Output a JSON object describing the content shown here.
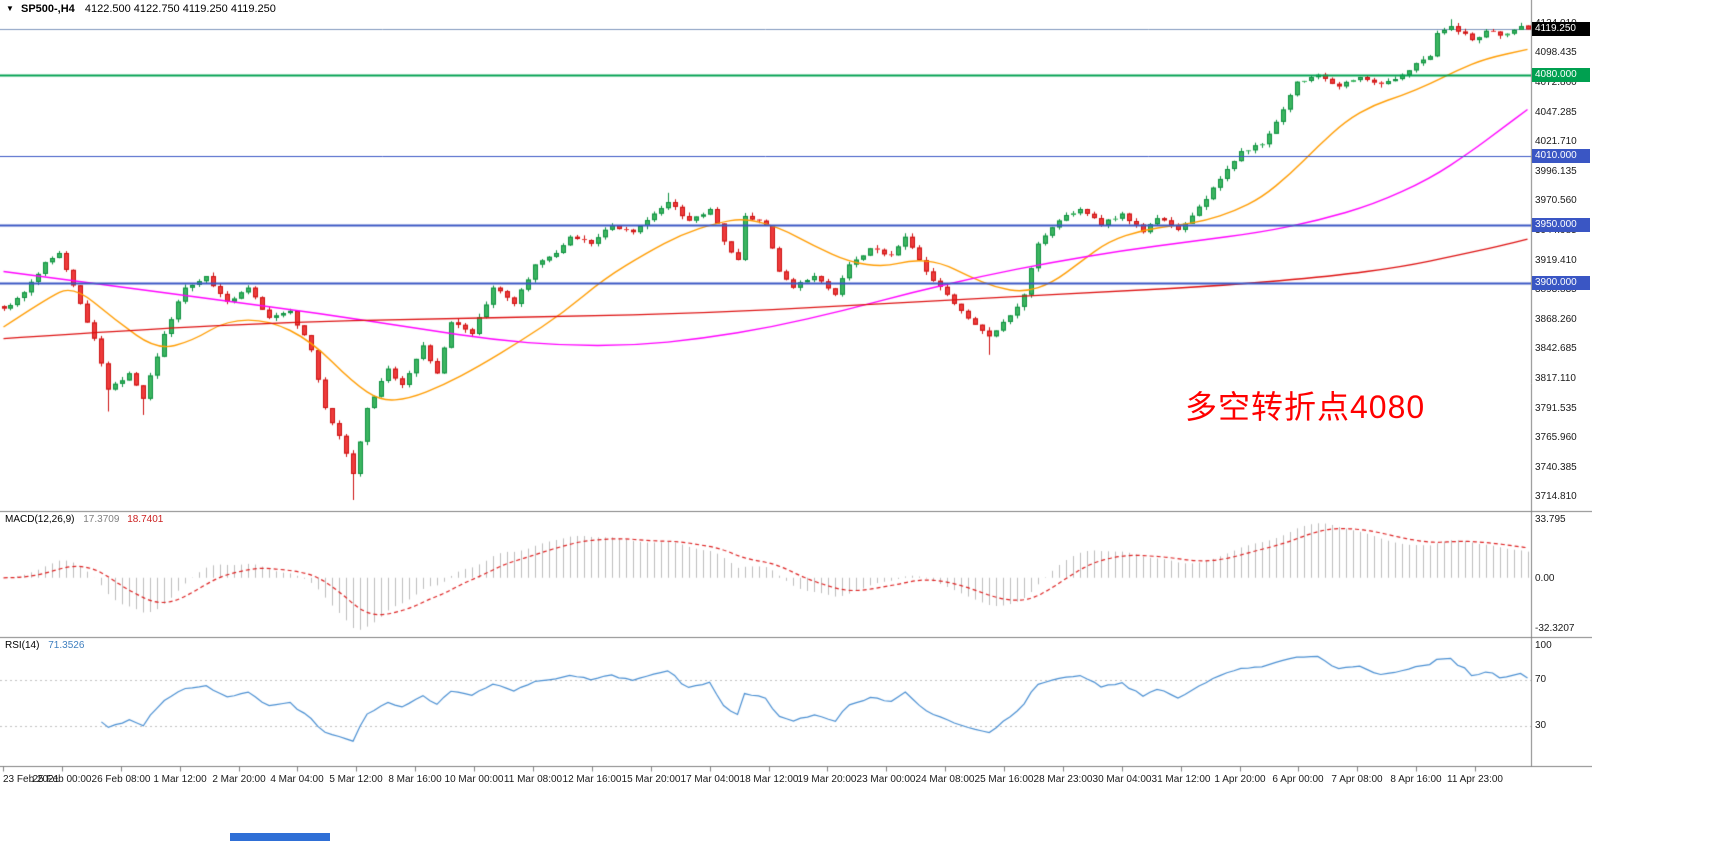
{
  "icons": {
    "chart_menu": "▼"
  },
  "title": {
    "symbol_period": "SP500-,H4",
    "ohlc": "4122.500 4122.750 4119.250 4119.250"
  },
  "current_price": {
    "label": "4119.250",
    "value": 4119.25,
    "box_color": "#000000"
  },
  "annotation": {
    "text": "多空转折点4080",
    "color": "#ff0000"
  },
  "levels": [
    {
      "label": "4080.000",
      "value": 4080,
      "color": "#00a050",
      "width": 2
    },
    {
      "label": "4010.000",
      "value": 4010,
      "color": "#3a56c4",
      "width": 1
    },
    {
      "label": "3950.000",
      "value": 3950,
      "color": "#3a56c4",
      "width": 2
    },
    {
      "label": "3900.000",
      "value": 3900,
      "color": "#3a56c4",
      "width": 2
    }
  ],
  "price_axis": {
    "labels": [
      "4124.010",
      "4098.435",
      "4072.860",
      "4047.285",
      "4021.710",
      "3996.135",
      "3970.560",
      "3944.985",
      "3919.410",
      "3893.835",
      "3868.260",
      "3842.685",
      "3817.110",
      "3791.535",
      "3765.960",
      "3740.385",
      "3714.810"
    ]
  },
  "time_axis": {
    "labels": [
      "23 Feb 2021",
      "25 Feb 00:00",
      "26 Feb 08:00",
      "1 Mar 12:00",
      "2 Mar 20:00",
      "4 Mar 04:00",
      "5 Mar 12:00",
      "8 Mar 16:00",
      "10 Mar 00:00",
      "11 Mar 08:00",
      "12 Mar 16:00",
      "15 Mar 20:00",
      "17 Mar 04:00",
      "18 Mar 12:00",
      "19 Mar 20:00",
      "23 Mar 00:00",
      "24 Mar 08:00",
      "25 Mar 16:00",
      "28 Mar 23:00",
      "30 Mar 04:00",
      "31 Mar 12:00",
      "1 Apr 20:00",
      "6 Apr 00:00",
      "7 Apr 08:00",
      "8 Apr 16:00",
      "11 Apr 23:00"
    ]
  },
  "macd": {
    "title": "MACD(12,26,9)",
    "value_main": "17.3709",
    "value_signal": "18.7401",
    "axis_labels": [
      "33.795",
      "0.00",
      "-32.3207"
    ],
    "params": {
      "fast": 12,
      "slow": 26,
      "signal": 9
    },
    "histogram_color": "#bdbdbd",
    "signal_color": "#dd2222"
  },
  "rsi": {
    "title": "RSI(14)",
    "value": "71.3526",
    "period": 14,
    "axis_labels": [
      "100",
      "70",
      "30"
    ],
    "level_values": [
      70,
      30
    ],
    "line_color": "#4a8fd2"
  },
  "chart_data": {
    "type": "candlestick",
    "symbol": "SP500-",
    "timeframe": "H4",
    "bars": 219,
    "visible_price_range": [
      3703,
      4136
    ],
    "current_ohlc": {
      "open": 4122.5,
      "high": 4122.75,
      "low": 4119.25,
      "close": 4119.25
    },
    "close_path_anchors": [
      [
        0,
        3878
      ],
      [
        3,
        3892
      ],
      [
        6,
        3918
      ],
      [
        8,
        3926
      ],
      [
        10,
        3898
      ],
      [
        13,
        3852
      ],
      [
        15,
        3808
      ],
      [
        18,
        3822
      ],
      [
        20,
        3800
      ],
      [
        23,
        3856
      ],
      [
        26,
        3896
      ],
      [
        29,
        3906
      ],
      [
        32,
        3884
      ],
      [
        35,
        3896
      ],
      [
        38,
        3870
      ],
      [
        41,
        3876
      ],
      [
        44,
        3842
      ],
      [
        46,
        3792
      ],
      [
        48,
        3768
      ],
      [
        50,
        3735
      ],
      [
        52,
        3792
      ],
      [
        55,
        3826
      ],
      [
        57,
        3812
      ],
      [
        60,
        3846
      ],
      [
        62,
        3822
      ],
      [
        64,
        3866
      ],
      [
        67,
        3856
      ],
      [
        70,
        3896
      ],
      [
        73,
        3882
      ],
      [
        76,
        3916
      ],
      [
        79,
        3926
      ],
      [
        81,
        3940
      ],
      [
        84,
        3934
      ],
      [
        87,
        3950
      ],
      [
        90,
        3944
      ],
      [
        93,
        3960
      ],
      [
        95,
        3970
      ],
      [
        98,
        3954
      ],
      [
        101,
        3964
      ],
      [
        103,
        3936
      ],
      [
        105,
        3920
      ],
      [
        106,
        3958
      ],
      [
        109,
        3950
      ],
      [
        111,
        3910
      ],
      [
        113,
        3896
      ],
      [
        116,
        3906
      ],
      [
        119,
        3890
      ],
      [
        121,
        3916
      ],
      [
        124,
        3930
      ],
      [
        127,
        3924
      ],
      [
        129,
        3940
      ],
      [
        132,
        3910
      ],
      [
        135,
        3890
      ],
      [
        137,
        3876
      ],
      [
        139,
        3864
      ],
      [
        141,
        3854
      ],
      [
        144,
        3872
      ],
      [
        146,
        3890
      ],
      [
        148,
        3934
      ],
      [
        151,
        3954
      ],
      [
        154,
        3964
      ],
      [
        157,
        3950
      ],
      [
        160,
        3960
      ],
      [
        163,
        3944
      ],
      [
        165,
        3956
      ],
      [
        168,
        3946
      ],
      [
        171,
        3966
      ],
      [
        174,
        3990
      ],
      [
        177,
        4014
      ],
      [
        180,
        4020
      ],
      [
        183,
        4050
      ],
      [
        185,
        4074
      ],
      [
        188,
        4080
      ],
      [
        191,
        4070
      ],
      [
        194,
        4078
      ],
      [
        197,
        4072
      ],
      [
        200,
        4080
      ],
      [
        202,
        4090
      ],
      [
        204,
        4096
      ],
      [
        205,
        4116
      ],
      [
        207,
        4122
      ],
      [
        210,
        4110
      ],
      [
        212,
        4118
      ],
      [
        214,
        4114
      ],
      [
        217,
        4122
      ],
      [
        218,
        4119.25
      ]
    ],
    "wick_extremes": [
      {
        "bar": 15,
        "low": 3789
      },
      {
        "bar": 20,
        "low": 3786
      },
      {
        "bar": 50,
        "low": 3712.5
      },
      {
        "bar": 95,
        "high": 3978
      },
      {
        "bar": 141,
        "low": 3838
      },
      {
        "bar": 207,
        "high": 4128
      }
    ],
    "moving_averages": [
      {
        "name": "ma-fast",
        "color": "#ff9c00",
        "points": [
          [
            0,
            3862
          ],
          [
            6,
            3886
          ],
          [
            10,
            3898
          ],
          [
            16,
            3868
          ],
          [
            22,
            3842
          ],
          [
            27,
            3850
          ],
          [
            32,
            3868
          ],
          [
            38,
            3868
          ],
          [
            44,
            3850
          ],
          [
            50,
            3814
          ],
          [
            54,
            3798
          ],
          [
            58,
            3800
          ],
          [
            63,
            3812
          ],
          [
            68,
            3828
          ],
          [
            74,
            3850
          ],
          [
            80,
            3874
          ],
          [
            86,
            3904
          ],
          [
            92,
            3926
          ],
          [
            97,
            3942
          ],
          [
            102,
            3952
          ],
          [
            106,
            3956
          ],
          [
            111,
            3948
          ],
          [
            116,
            3932
          ],
          [
            121,
            3918
          ],
          [
            126,
            3914
          ],
          [
            130,
            3920
          ],
          [
            134,
            3918
          ],
          [
            138,
            3906
          ],
          [
            142,
            3896
          ],
          [
            146,
            3892
          ],
          [
            150,
            3900
          ],
          [
            154,
            3918
          ],
          [
            158,
            3936
          ],
          [
            163,
            3946
          ],
          [
            168,
            3950
          ],
          [
            172,
            3954
          ],
          [
            176,
            3962
          ],
          [
            180,
            3974
          ],
          [
            184,
            3994
          ],
          [
            188,
            4018
          ],
          [
            192,
            4040
          ],
          [
            196,
            4054
          ],
          [
            200,
            4062
          ],
          [
            204,
            4072
          ],
          [
            208,
            4084
          ],
          [
            212,
            4094
          ],
          [
            218,
            4102
          ]
        ]
      },
      {
        "name": "ma-medium",
        "color": "#ff00ff",
        "points": [
          [
            0,
            3910
          ],
          [
            15,
            3898
          ],
          [
            30,
            3886
          ],
          [
            45,
            3874
          ],
          [
            60,
            3860
          ],
          [
            70,
            3851
          ],
          [
            80,
            3846
          ],
          [
            90,
            3846
          ],
          [
            100,
            3852
          ],
          [
            110,
            3862
          ],
          [
            120,
            3876
          ],
          [
            130,
            3892
          ],
          [
            140,
            3906
          ],
          [
            150,
            3918
          ],
          [
            160,
            3928
          ],
          [
            170,
            3936
          ],
          [
            180,
            3944
          ],
          [
            188,
            3954
          ],
          [
            196,
            3968
          ],
          [
            204,
            3990
          ],
          [
            210,
            4014
          ],
          [
            214,
            4032
          ],
          [
            218,
            4050
          ]
        ]
      },
      {
        "name": "ma-slow",
        "color": "#dd1111",
        "points": [
          [
            0,
            3852
          ],
          [
            20,
            3860
          ],
          [
            40,
            3866
          ],
          [
            60,
            3869
          ],
          [
            80,
            3871
          ],
          [
            100,
            3874
          ],
          [
            120,
            3880
          ],
          [
            140,
            3887
          ],
          [
            160,
            3893
          ],
          [
            175,
            3898
          ],
          [
            190,
            3906
          ],
          [
            200,
            3914
          ],
          [
            208,
            3924
          ],
          [
            214,
            3932
          ],
          [
            218,
            3938
          ]
        ]
      }
    ],
    "colors": {
      "up_stroke": "#0e9140",
      "up_fill": "#3cb560",
      "down_stroke": "#cc1111",
      "down_fill": "#ee3b3b",
      "bid_line": "#7e96bd"
    }
  }
}
